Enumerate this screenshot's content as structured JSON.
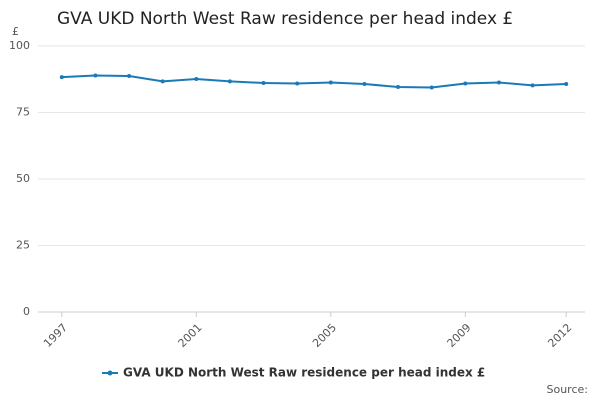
{
  "chart_data": {
    "type": "line",
    "title": "GVA UKD North West Raw residence per head index £",
    "y_unit": "£",
    "x": [
      1997,
      1998,
      1999,
      2000,
      2001,
      2002,
      2003,
      2004,
      2005,
      2006,
      2007,
      2008,
      2009,
      2010,
      2011,
      2012
    ],
    "series": [
      {
        "name": "GVA UKD North West Raw residence per head index £",
        "color": "#1a7ab8",
        "values": [
          88.3,
          88.9,
          88.7,
          86.7,
          87.6,
          86.7,
          86.1,
          85.9,
          86.3,
          85.7,
          84.6,
          84.4,
          85.9,
          86.3,
          85.2,
          85.7
        ]
      }
    ],
    "xlim": [
      1996.5,
      2012.5
    ],
    "xticks": [
      1997,
      2001,
      2005,
      2009,
      2012
    ],
    "ylim": [
      0,
      100
    ],
    "yticks": [
      0,
      25,
      50,
      75,
      100
    ],
    "grid": true,
    "source": "Source:"
  }
}
